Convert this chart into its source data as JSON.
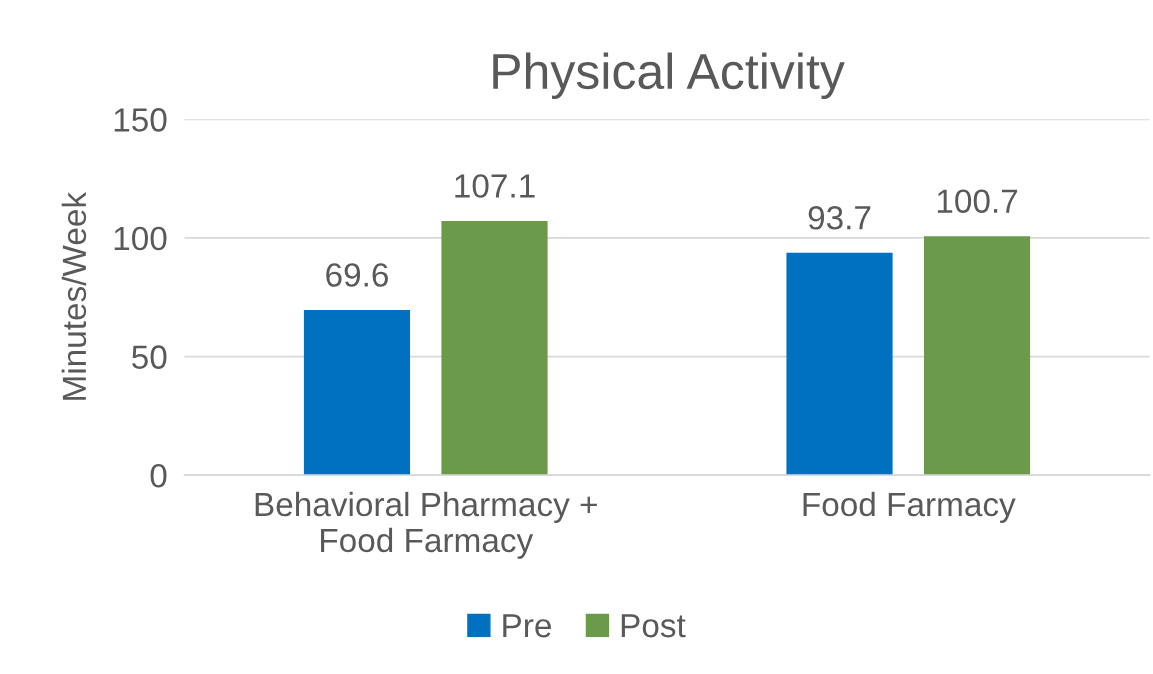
{
  "chart_data": {
    "type": "bar",
    "title": "Physical Activity",
    "ylabel": "Minutes/Week",
    "categories": [
      "Behavioral Pharmacy +\nFood Farmacy",
      "Food Farmacy"
    ],
    "series": [
      {
        "name": "Pre",
        "color": "#0070c0",
        "values": [
          69.6,
          93.7
        ]
      },
      {
        "name": "Post",
        "color": "#6a9a4a",
        "values": [
          107.1,
          100.7
        ]
      }
    ],
    "ylim": [
      0,
      150
    ],
    "yticks": [
      0,
      50,
      100,
      150
    ],
    "grid": "y",
    "legend": "bottom",
    "data_labels": true
  }
}
